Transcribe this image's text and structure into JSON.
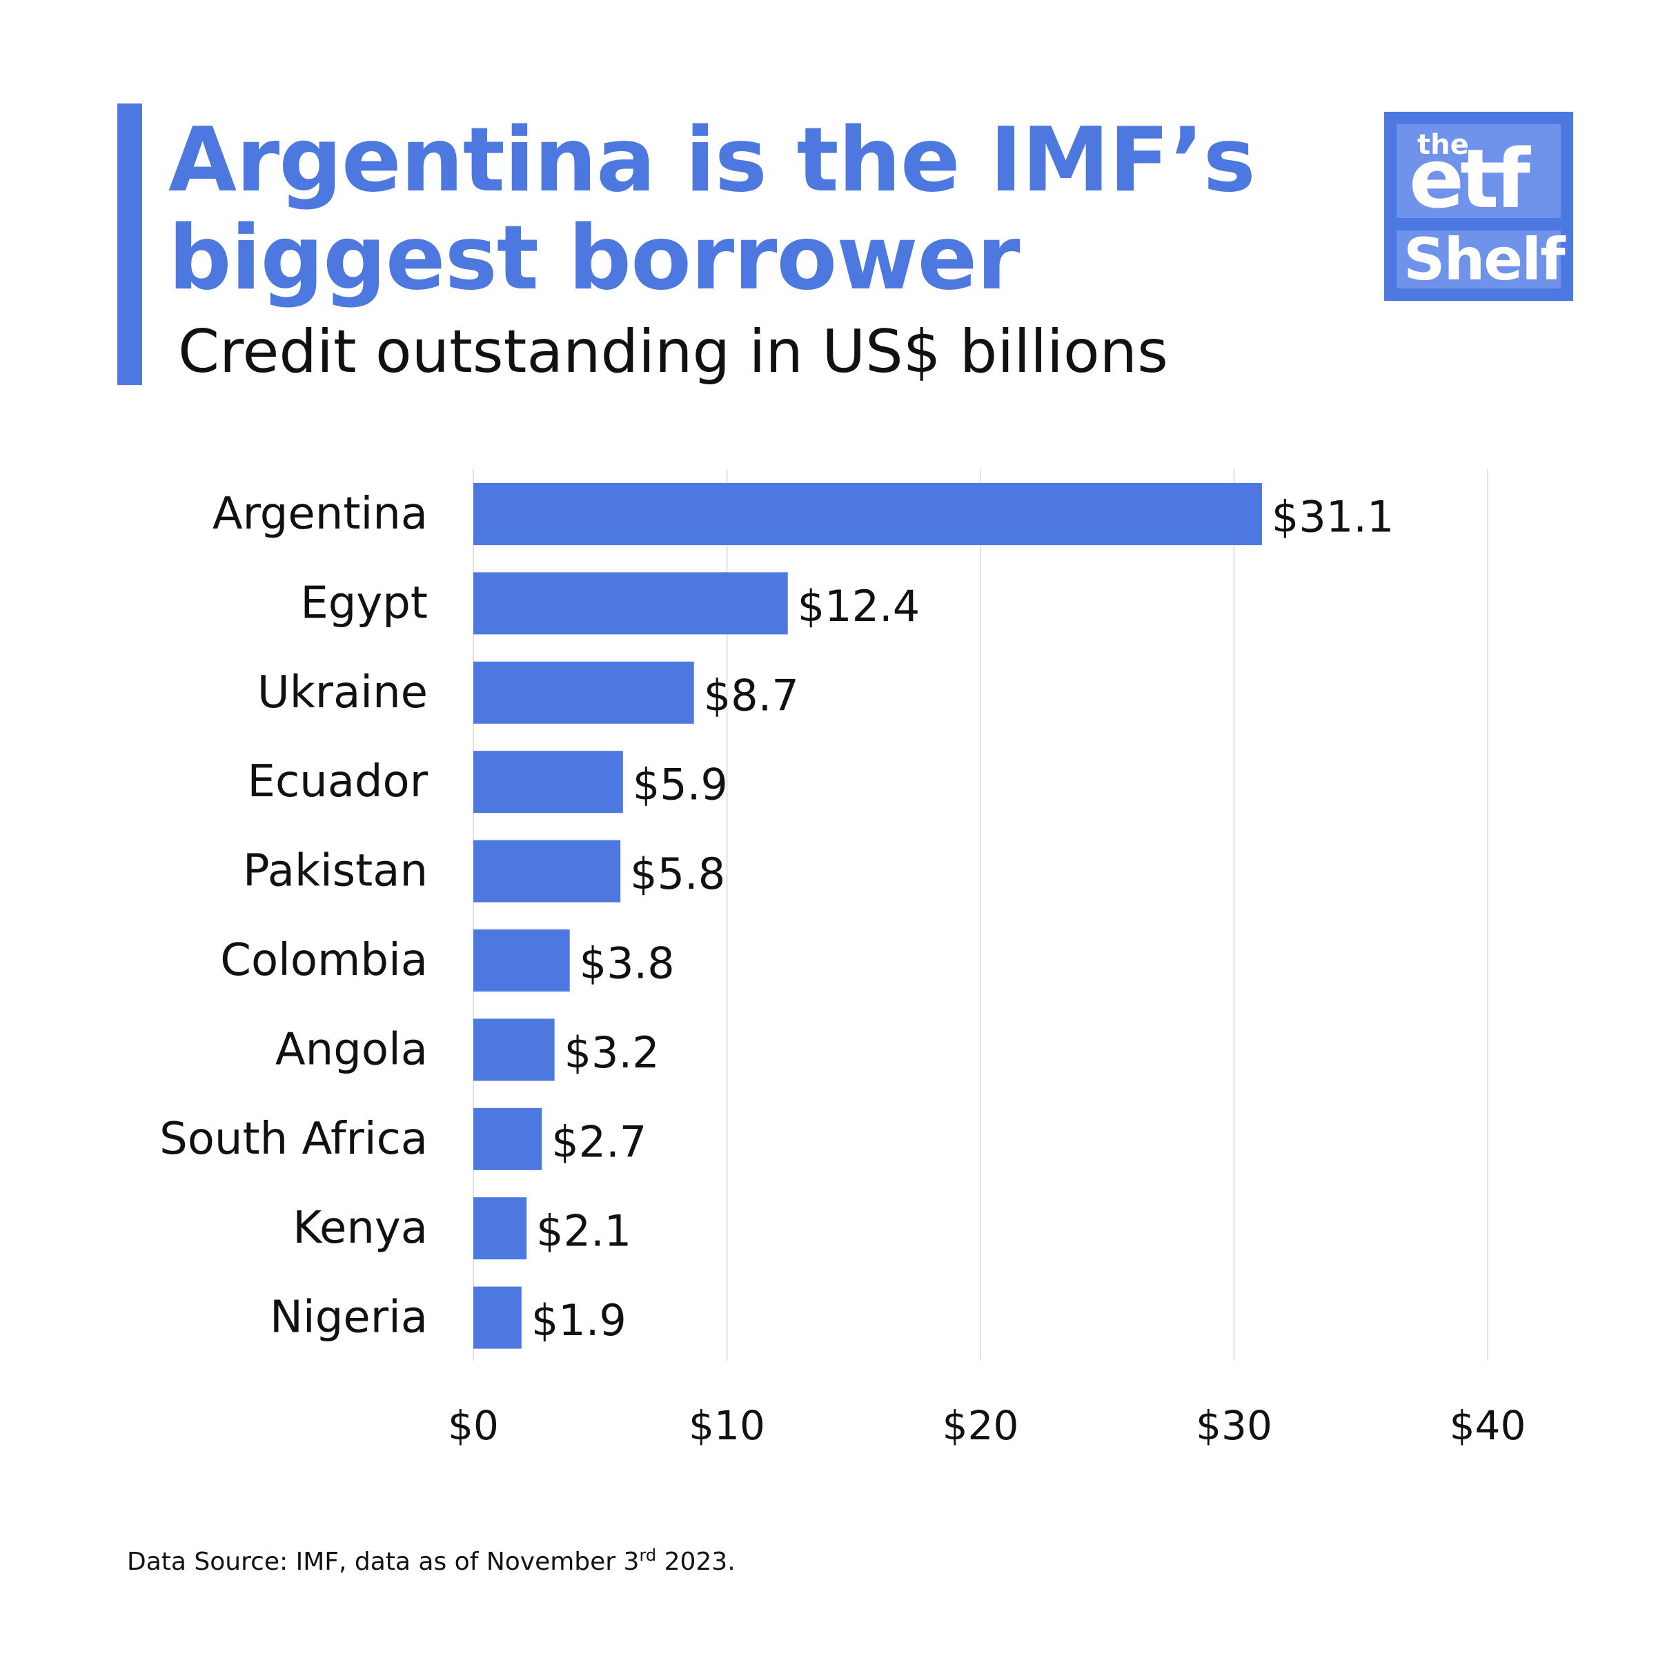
{
  "title": {
    "line1": "Argentina is the IMF’s",
    "line2": "biggest borrower"
  },
  "subtitle": "Credit outstanding in US$ billions",
  "logo": {
    "the": "the",
    "etf": "etf",
    "shelf": "Shelf"
  },
  "footnote": {
    "before": "Data Source: IMF, data as of November 3",
    "superscript": "rd",
    "after": " 2023."
  },
  "colors": {
    "accent": "#4d78e0",
    "bar": "#4d78e0",
    "grid": "#e2e2e2",
    "text": "#111111"
  },
  "chart_data": {
    "type": "bar",
    "orientation": "horizontal",
    "categories": [
      "Argentina",
      "Egypt",
      "Ukraine",
      "Ecuador",
      "Pakistan",
      "Colombia",
      "Angola",
      "South Africa",
      "Kenya",
      "Nigeria"
    ],
    "values": [
      31.1,
      12.4,
      8.7,
      5.9,
      5.8,
      3.8,
      3.2,
      2.7,
      2.1,
      1.9
    ],
    "value_labels": [
      "$31.1",
      "$12.4",
      "$8.7",
      "$5.9",
      "$5.8",
      "$3.8",
      "$3.2",
      "$2.7",
      "$2.1",
      "$1.9"
    ],
    "xticks": [
      0,
      10,
      20,
      30,
      40
    ],
    "xtick_labels": [
      "$0",
      "$10",
      "$20",
      "$30",
      "$40"
    ],
    "xlim": [
      0,
      40
    ],
    "grid": "vertical"
  }
}
